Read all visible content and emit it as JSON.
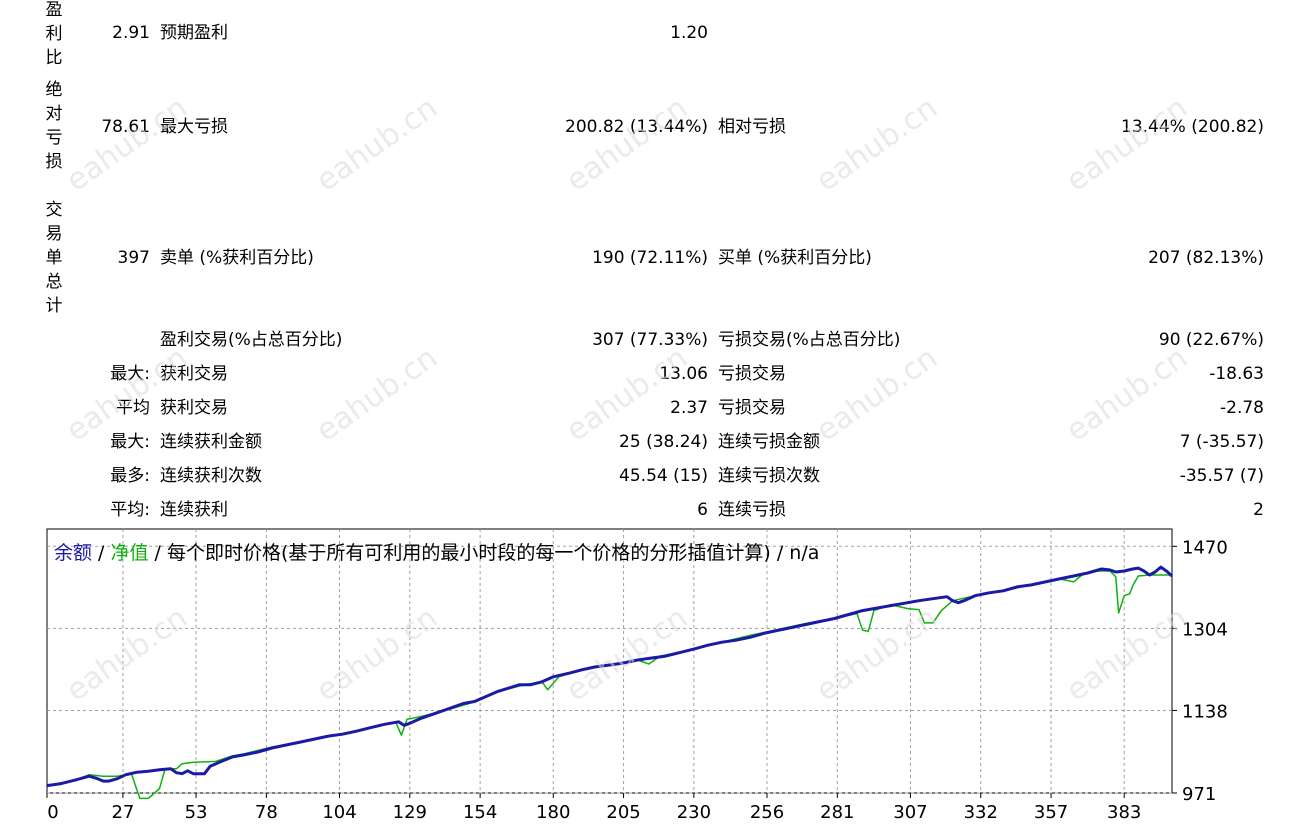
{
  "stats": {
    "row1": {
      "left_label": "盈利比",
      "left_value": "2.91",
      "mid_label": "预期盈利",
      "mid_value": "1.20"
    },
    "row2": {
      "left_label": "绝对亏损",
      "left_value": "78.61",
      "mid_label": "最大亏损",
      "mid_value": "200.82 (13.44%)",
      "right_label": "相对亏损",
      "right_value": "13.44% (200.82)"
    },
    "row3": {
      "left_label": "交易单总计",
      "left_value": "397",
      "mid_label": "卖单 (%获利百分比)",
      "mid_value": "190 (72.11%)",
      "right_label": "买单 (%获利百分比)",
      "right_value": "207 (82.13%)"
    },
    "row4": {
      "left_value": "",
      "mid_label": "盈利交易(%占总百分比)",
      "mid_value": "307 (77.33%)",
      "right_label": "亏损交易(%占总百分比)",
      "right_value": "90 (22.67%)"
    },
    "row5": {
      "prefix": "最大:",
      "mid_label": "获利交易",
      "mid_value": "13.06",
      "right_label": "亏损交易",
      "right_value": "-18.63"
    },
    "row6": {
      "prefix": "平均",
      "mid_label": "获利交易",
      "mid_value": "2.37",
      "right_label": "亏损交易",
      "right_value": "-2.78"
    },
    "row7": {
      "prefix": "最大:",
      "mid_label": "连续获利金额",
      "mid_value": "25 (38.24)",
      "right_label": "连续亏损金额",
      "right_value": "7 (-35.57)"
    },
    "row8": {
      "prefix": "最多:",
      "mid_label": "连续获利次数",
      "mid_value": "45.54 (15)",
      "right_label": "连续亏损次数",
      "right_value": "-35.57 (7)"
    },
    "row9": {
      "prefix": "平均:",
      "mid_label": "连续获利",
      "mid_value": "6",
      "right_label": "连续亏损",
      "right_value": "2"
    }
  },
  "watermark": "eahub.cn",
  "chart_data": {
    "type": "line",
    "legend": {
      "balance": "余额",
      "sep1": " / ",
      "equity": "净值",
      "sep2": " / ",
      "rest": "每个即时价格(基于所有可利用的最小时段的每一个价格的分形插值计算) / n/a"
    },
    "colors": {
      "balance": "#1a1aa6",
      "equity": "#10b010",
      "grid": "#a0a0a0"
    },
    "x_ticks": [
      0,
      27,
      53,
      78,
      104,
      129,
      154,
      180,
      205,
      230,
      256,
      281,
      307,
      332,
      357,
      383
    ],
    "y_ticks": [
      1470,
      1304,
      1138,
      971
    ],
    "xlim": [
      0,
      400
    ],
    "ylim": [
      971,
      1505
    ],
    "series": [
      {
        "name": "余额",
        "points": [
          [
            0,
            986
          ],
          [
            5,
            990
          ],
          [
            10,
            997
          ],
          [
            15,
            1005
          ],
          [
            18,
            1000
          ],
          [
            20,
            995
          ],
          [
            22,
            995
          ],
          [
            25,
            1000
          ],
          [
            28,
            1008
          ],
          [
            32,
            1013
          ],
          [
            36,
            1015
          ],
          [
            40,
            1018
          ],
          [
            44,
            1020
          ],
          [
            46,
            1012
          ],
          [
            48,
            1010
          ],
          [
            50,
            1016
          ],
          [
            52,
            1010
          ],
          [
            56,
            1010
          ],
          [
            58,
            1025
          ],
          [
            62,
            1035
          ],
          [
            66,
            1044
          ],
          [
            70,
            1048
          ],
          [
            75,
            1054
          ],
          [
            80,
            1062
          ],
          [
            85,
            1068
          ],
          [
            90,
            1074
          ],
          [
            95,
            1080
          ],
          [
            100,
            1086
          ],
          [
            105,
            1090
          ],
          [
            110,
            1096
          ],
          [
            115,
            1103
          ],
          [
            120,
            1110
          ],
          [
            125,
            1115
          ],
          [
            127,
            1108
          ],
          [
            129,
            1112
          ],
          [
            133,
            1122
          ],
          [
            138,
            1132
          ],
          [
            143,
            1142
          ],
          [
            148,
            1152
          ],
          [
            152,
            1156
          ],
          [
            156,
            1166
          ],
          [
            160,
            1176
          ],
          [
            164,
            1183
          ],
          [
            168,
            1190
          ],
          [
            172,
            1190
          ],
          [
            176,
            1196
          ],
          [
            180,
            1206
          ],
          [
            186,
            1214
          ],
          [
            190,
            1220
          ],
          [
            195,
            1226
          ],
          [
            200,
            1230
          ],
          [
            205,
            1234
          ],
          [
            210,
            1240
          ],
          [
            215,
            1244
          ],
          [
            220,
            1248
          ],
          [
            225,
            1255
          ],
          [
            230,
            1262
          ],
          [
            235,
            1270
          ],
          [
            240,
            1276
          ],
          [
            245,
            1280
          ],
          [
            250,
            1286
          ],
          [
            255,
            1294
          ],
          [
            260,
            1300
          ],
          [
            265,
            1306
          ],
          [
            270,
            1312
          ],
          [
            275,
            1318
          ],
          [
            280,
            1324
          ],
          [
            285,
            1332
          ],
          [
            290,
            1340
          ],
          [
            295,
            1345
          ],
          [
            300,
            1350
          ],
          [
            305,
            1355
          ],
          [
            310,
            1360
          ],
          [
            315,
            1364
          ],
          [
            320,
            1368
          ],
          [
            322,
            1360
          ],
          [
            324,
            1356
          ],
          [
            326,
            1360
          ],
          [
            330,
            1370
          ],
          [
            335,
            1376
          ],
          [
            340,
            1380
          ],
          [
            345,
            1388
          ],
          [
            350,
            1392
          ],
          [
            355,
            1398
          ],
          [
            360,
            1404
          ],
          [
            365,
            1410
          ],
          [
            370,
            1416
          ],
          [
            375,
            1424
          ],
          [
            378,
            1422
          ],
          [
            380,
            1418
          ],
          [
            383,
            1420
          ],
          [
            386,
            1424
          ],
          [
            388,
            1426
          ],
          [
            390,
            1420
          ],
          [
            392,
            1412
          ],
          [
            394,
            1418
          ],
          [
            396,
            1428
          ],
          [
            398,
            1420
          ],
          [
            400,
            1410
          ]
        ]
      },
      {
        "name": "净值",
        "points": [
          [
            0,
            986
          ],
          [
            10,
            997
          ],
          [
            15,
            1008
          ],
          [
            20,
            1005
          ],
          [
            25,
            1005
          ],
          [
            30,
            1010
          ],
          [
            33,
            960
          ],
          [
            36,
            960
          ],
          [
            38,
            970
          ],
          [
            40,
            980
          ],
          [
            42,
            1020
          ],
          [
            46,
            1020
          ],
          [
            48,
            1030
          ],
          [
            52,
            1033
          ],
          [
            56,
            1034
          ],
          [
            60,
            1035
          ],
          [
            66,
            1046
          ],
          [
            70,
            1050
          ],
          [
            80,
            1064
          ],
          [
            90,
            1074
          ],
          [
            100,
            1086
          ],
          [
            110,
            1096
          ],
          [
            120,
            1110
          ],
          [
            124,
            1114
          ],
          [
            126,
            1088
          ],
          [
            128,
            1120
          ],
          [
            130,
            1122
          ],
          [
            140,
            1135
          ],
          [
            150,
            1152
          ],
          [
            160,
            1176
          ],
          [
            170,
            1190
          ],
          [
            176,
            1196
          ],
          [
            178,
            1180
          ],
          [
            182,
            1206
          ],
          [
            190,
            1220
          ],
          [
            200,
            1230
          ],
          [
            210,
            1240
          ],
          [
            214,
            1232
          ],
          [
            218,
            1248
          ],
          [
            230,
            1262
          ],
          [
            240,
            1276
          ],
          [
            250,
            1290
          ],
          [
            260,
            1302
          ],
          [
            270,
            1314
          ],
          [
            280,
            1324
          ],
          [
            288,
            1334
          ],
          [
            290,
            1300
          ],
          [
            292,
            1298
          ],
          [
            294,
            1340
          ],
          [
            300,
            1352
          ],
          [
            306,
            1344
          ],
          [
            310,
            1342
          ],
          [
            312,
            1315
          ],
          [
            315,
            1315
          ],
          [
            318,
            1340
          ],
          [
            322,
            1360
          ],
          [
            330,
            1370
          ],
          [
            340,
            1380
          ],
          [
            350,
            1392
          ],
          [
            360,
            1404
          ],
          [
            365,
            1398
          ],
          [
            368,
            1412
          ],
          [
            372,
            1420
          ],
          [
            378,
            1420
          ],
          [
            380,
            1408
          ],
          [
            381,
            1335
          ],
          [
            383,
            1370
          ],
          [
            385,
            1374
          ],
          [
            386,
            1390
          ],
          [
            388,
            1410
          ],
          [
            392,
            1412
          ],
          [
            396,
            1412
          ],
          [
            400,
            1412
          ]
        ]
      }
    ]
  }
}
